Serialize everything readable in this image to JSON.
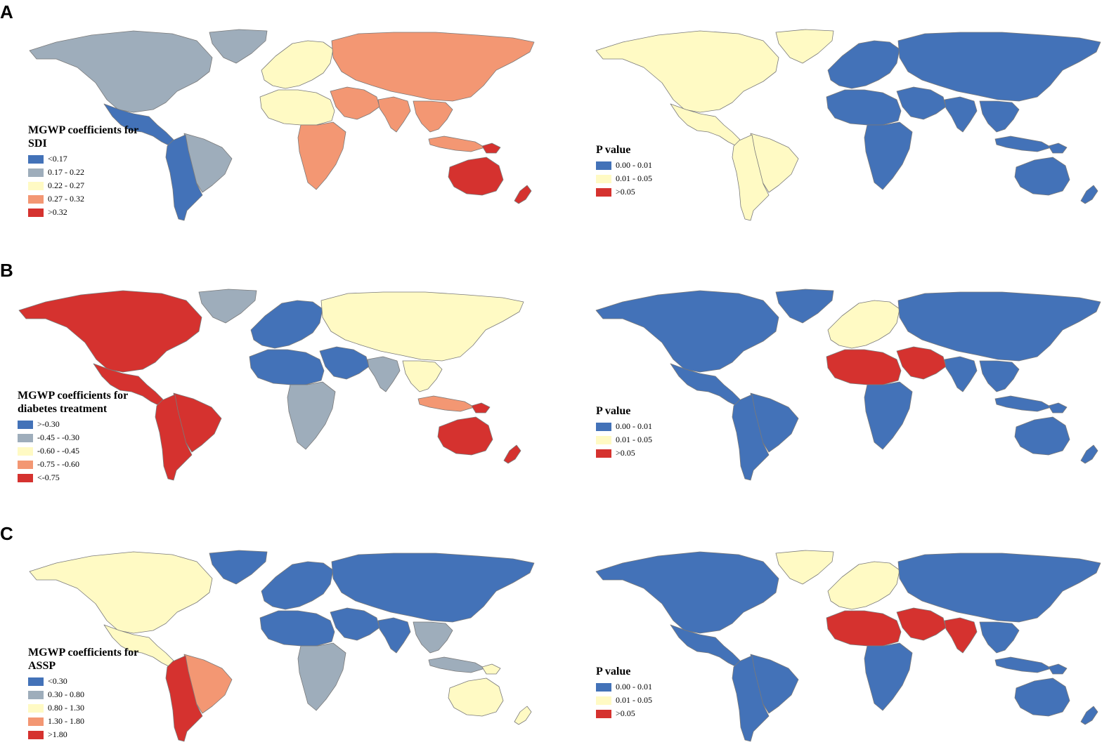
{
  "colors": {
    "blue": "#4372b8",
    "grey": "#9eadbb",
    "yellow": "#fffac4",
    "orange": "#f39773",
    "red": "#d5322f",
    "border": "#7a7a7a"
  },
  "panels": [
    {
      "letter": "A",
      "coef_legend": {
        "title_line1": "MGWP coefficients for",
        "title_line2": "SDI",
        "items": [
          {
            "label": "<0.17",
            "color": "blue"
          },
          {
            "label": "0.17 - 0.22",
            "color": "grey"
          },
          {
            "label": "0.22 - 0.27",
            "color": "yellow"
          },
          {
            "label": "0.27 - 0.32",
            "color": "orange"
          },
          {
            "label": ">0.32",
            "color": "red"
          }
        ],
        "regions": {
          "north_america": "grey",
          "greenland": "grey",
          "mexico_central": "blue",
          "south_america_west": "blue",
          "south_america_east": "grey",
          "europe": "yellow",
          "north_africa": "yellow",
          "subsaharan_africa": "orange",
          "russia_asia": "orange",
          "middle_east": "orange",
          "india": "orange",
          "se_asia": "orange",
          "indonesia": "orange",
          "australia": "red",
          "new_zealand": "red",
          "png": "red"
        }
      },
      "p_legend": {
        "title": "P value",
        "items": [
          {
            "label": "0.00 - 0.01",
            "color": "blue"
          },
          {
            "label": "0.01 - 0.05",
            "color": "yellow"
          },
          {
            "label": ">0.05",
            "color": "red"
          }
        ],
        "regions": {
          "north_america": "yellow",
          "greenland": "yellow",
          "mexico_central": "yellow",
          "south_america_west": "yellow",
          "south_america_east": "yellow",
          "europe": "blue",
          "north_africa": "blue",
          "subsaharan_africa": "blue",
          "russia_asia": "blue",
          "middle_east": "blue",
          "india": "blue",
          "se_asia": "blue",
          "indonesia": "blue",
          "australia": "blue",
          "new_zealand": "blue",
          "png": "blue"
        }
      }
    },
    {
      "letter": "B",
      "coef_legend": {
        "title_line1": "MGWP coefficients for",
        "title_line2": "diabetes treatment",
        "items": [
          {
            "label": ">-0.30",
            "color": "blue"
          },
          {
            "label": "-0.45 - -0.30",
            "color": "grey"
          },
          {
            "label": "-0.60 - -0.45",
            "color": "yellow"
          },
          {
            "label": "-0.75 - -0.60",
            "color": "orange"
          },
          {
            "label": "<-0.75",
            "color": "red"
          }
        ],
        "regions": {
          "north_america": "red",
          "greenland": "grey",
          "mexico_central": "red",
          "south_america_west": "red",
          "south_america_east": "red",
          "europe": "blue",
          "north_africa": "blue",
          "subsaharan_africa": "grey",
          "russia_asia": "yellow",
          "middle_east": "blue",
          "india": "grey",
          "se_asia": "yellow",
          "indonesia": "orange",
          "australia": "red",
          "new_zealand": "red",
          "png": "red"
        }
      },
      "p_legend": {
        "title": "P value",
        "items": [
          {
            "label": "0.00 - 0.01",
            "color": "blue"
          },
          {
            "label": "0.01 - 0.05",
            "color": "yellow"
          },
          {
            "label": ">0.05",
            "color": "red"
          }
        ],
        "regions": {
          "north_america": "blue",
          "greenland": "blue",
          "mexico_central": "blue",
          "south_america_west": "blue",
          "south_america_east": "blue",
          "europe": "yellow",
          "north_africa": "red",
          "subsaharan_africa": "blue",
          "russia_asia": "blue",
          "middle_east": "red",
          "india": "blue",
          "se_asia": "blue",
          "indonesia": "blue",
          "australia": "blue",
          "new_zealand": "blue",
          "png": "blue"
        }
      }
    },
    {
      "letter": "C",
      "coef_legend": {
        "title_line1": "MGWP coefficients for",
        "title_line2": "ASSP",
        "items": [
          {
            "label": "<0.30",
            "color": "blue"
          },
          {
            "label": "0.30 - 0.80",
            "color": "grey"
          },
          {
            "label": "0.80 - 1.30",
            "color": "yellow"
          },
          {
            "label": "1.30 - 1.80",
            "color": "orange"
          },
          {
            "label": ">1.80",
            "color": "red"
          }
        ],
        "regions": {
          "north_america": "yellow",
          "greenland": "blue",
          "mexico_central": "yellow",
          "south_america_west": "red",
          "south_america_east": "orange",
          "europe": "blue",
          "north_africa": "blue",
          "subsaharan_africa": "grey",
          "russia_asia": "blue",
          "middle_east": "blue",
          "india": "blue",
          "se_asia": "grey",
          "indonesia": "grey",
          "australia": "yellow",
          "new_zealand": "yellow",
          "png": "yellow"
        }
      },
      "p_legend": {
        "title": "P value",
        "items": [
          {
            "label": "0.00 - 0.01",
            "color": "blue"
          },
          {
            "label": "0.01 - 0.05",
            "color": "yellow"
          },
          {
            "label": ">0.05",
            "color": "red"
          }
        ],
        "regions": {
          "north_america": "blue",
          "greenland": "yellow",
          "mexico_central": "blue",
          "south_america_west": "blue",
          "south_america_east": "blue",
          "europe": "yellow",
          "north_africa": "red",
          "subsaharan_africa": "blue",
          "russia_asia": "blue",
          "middle_east": "red",
          "india": "red",
          "se_asia": "blue",
          "indonesia": "blue",
          "australia": "blue",
          "new_zealand": "blue",
          "png": "blue"
        }
      }
    }
  ]
}
